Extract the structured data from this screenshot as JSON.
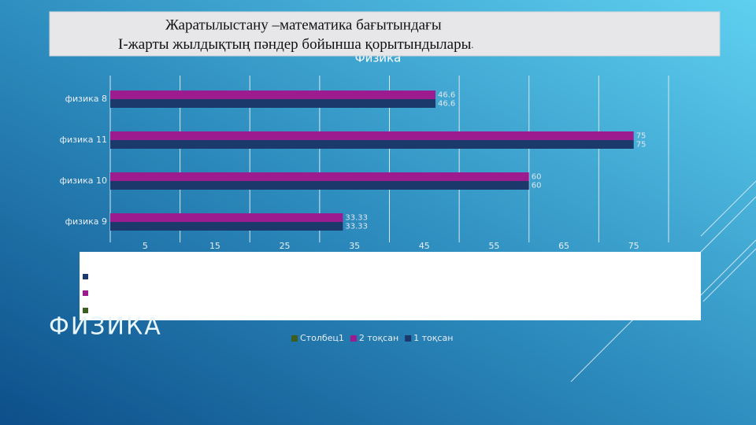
{
  "header": {
    "line1": "Жаратылыстану –математика бағытындағы",
    "line2": "І-жарты жылдықтың пәндер бойынша қорытындылары",
    "line2_end": "."
  },
  "slide_title": "ФИЗИКА",
  "chart_data": {
    "type": "barh",
    "title": "Физика",
    "categories": [
      "физика 9",
      "физика 10",
      "физика 11",
      "физика 8"
    ],
    "series": [
      {
        "name": "Столбец1",
        "color": "#3c5f1f",
        "values": [
          null,
          null,
          null,
          null
        ]
      },
      {
        "name": "2 тоқсан",
        "color": "#9c1b8e",
        "values": [
          33.33,
          60,
          75,
          46.6
        ]
      },
      {
        "name": "1 тоқсан",
        "color": "#1b3a6b",
        "values": [
          33.33,
          60,
          75,
          46.6
        ]
      }
    ],
    "xlim": [
      0,
      80
    ],
    "xticks": [
      5,
      15,
      25,
      35,
      45,
      55,
      65,
      75
    ],
    "xgrid": [
      0,
      10,
      20,
      30,
      40,
      50,
      60,
      70,
      80
    ],
    "grid": true,
    "legend": "bottom"
  }
}
